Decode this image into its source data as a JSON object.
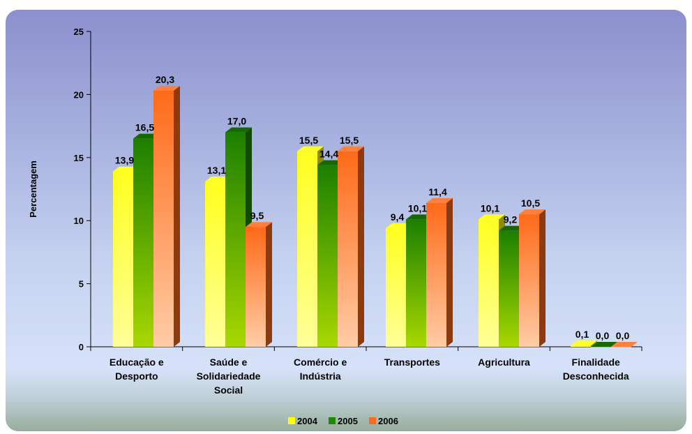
{
  "chart_data": {
    "type": "bar",
    "title": "",
    "xlabel": "",
    "ylabel": "Percentagem",
    "ylim": [
      0,
      25
    ],
    "yticks": [
      "0",
      "5",
      "10",
      "15",
      "20",
      "25"
    ],
    "categories": [
      [
        "Educação e",
        "Desporto"
      ],
      [
        "Saúde e",
        "Solidariedade",
        "Social"
      ],
      [
        "Comércio e",
        "Indústria"
      ],
      [
        "Transportes"
      ],
      [
        "Agricultura"
      ],
      [
        "Finalidade",
        "Desconhecida"
      ]
    ],
    "series": [
      {
        "name": "2004",
        "color": "#ffff00",
        "values": [
          13.9,
          13.1,
          15.5,
          9.4,
          10.1,
          0.1
        ],
        "labels": [
          "13,9",
          "13,1",
          "15,5",
          "9,4",
          "10,1",
          "0,1"
        ]
      },
      {
        "name": "2005",
        "color": "#1f8a00",
        "values": [
          16.5,
          17.0,
          14.4,
          10.1,
          9.2,
          0.0
        ],
        "labels": [
          "16,5",
          "17,0",
          "14,4",
          "10,1",
          "9,2",
          "0,0"
        ]
      },
      {
        "name": "2006",
        "color": "#ff6a1a",
        "values": [
          20.3,
          9.5,
          15.5,
          11.4,
          10.5,
          0.0
        ],
        "labels": [
          "20,3",
          "9,5",
          "15,5",
          "11,4",
          "10,5",
          "0,0"
        ]
      }
    ],
    "legend_position": "bottom"
  }
}
